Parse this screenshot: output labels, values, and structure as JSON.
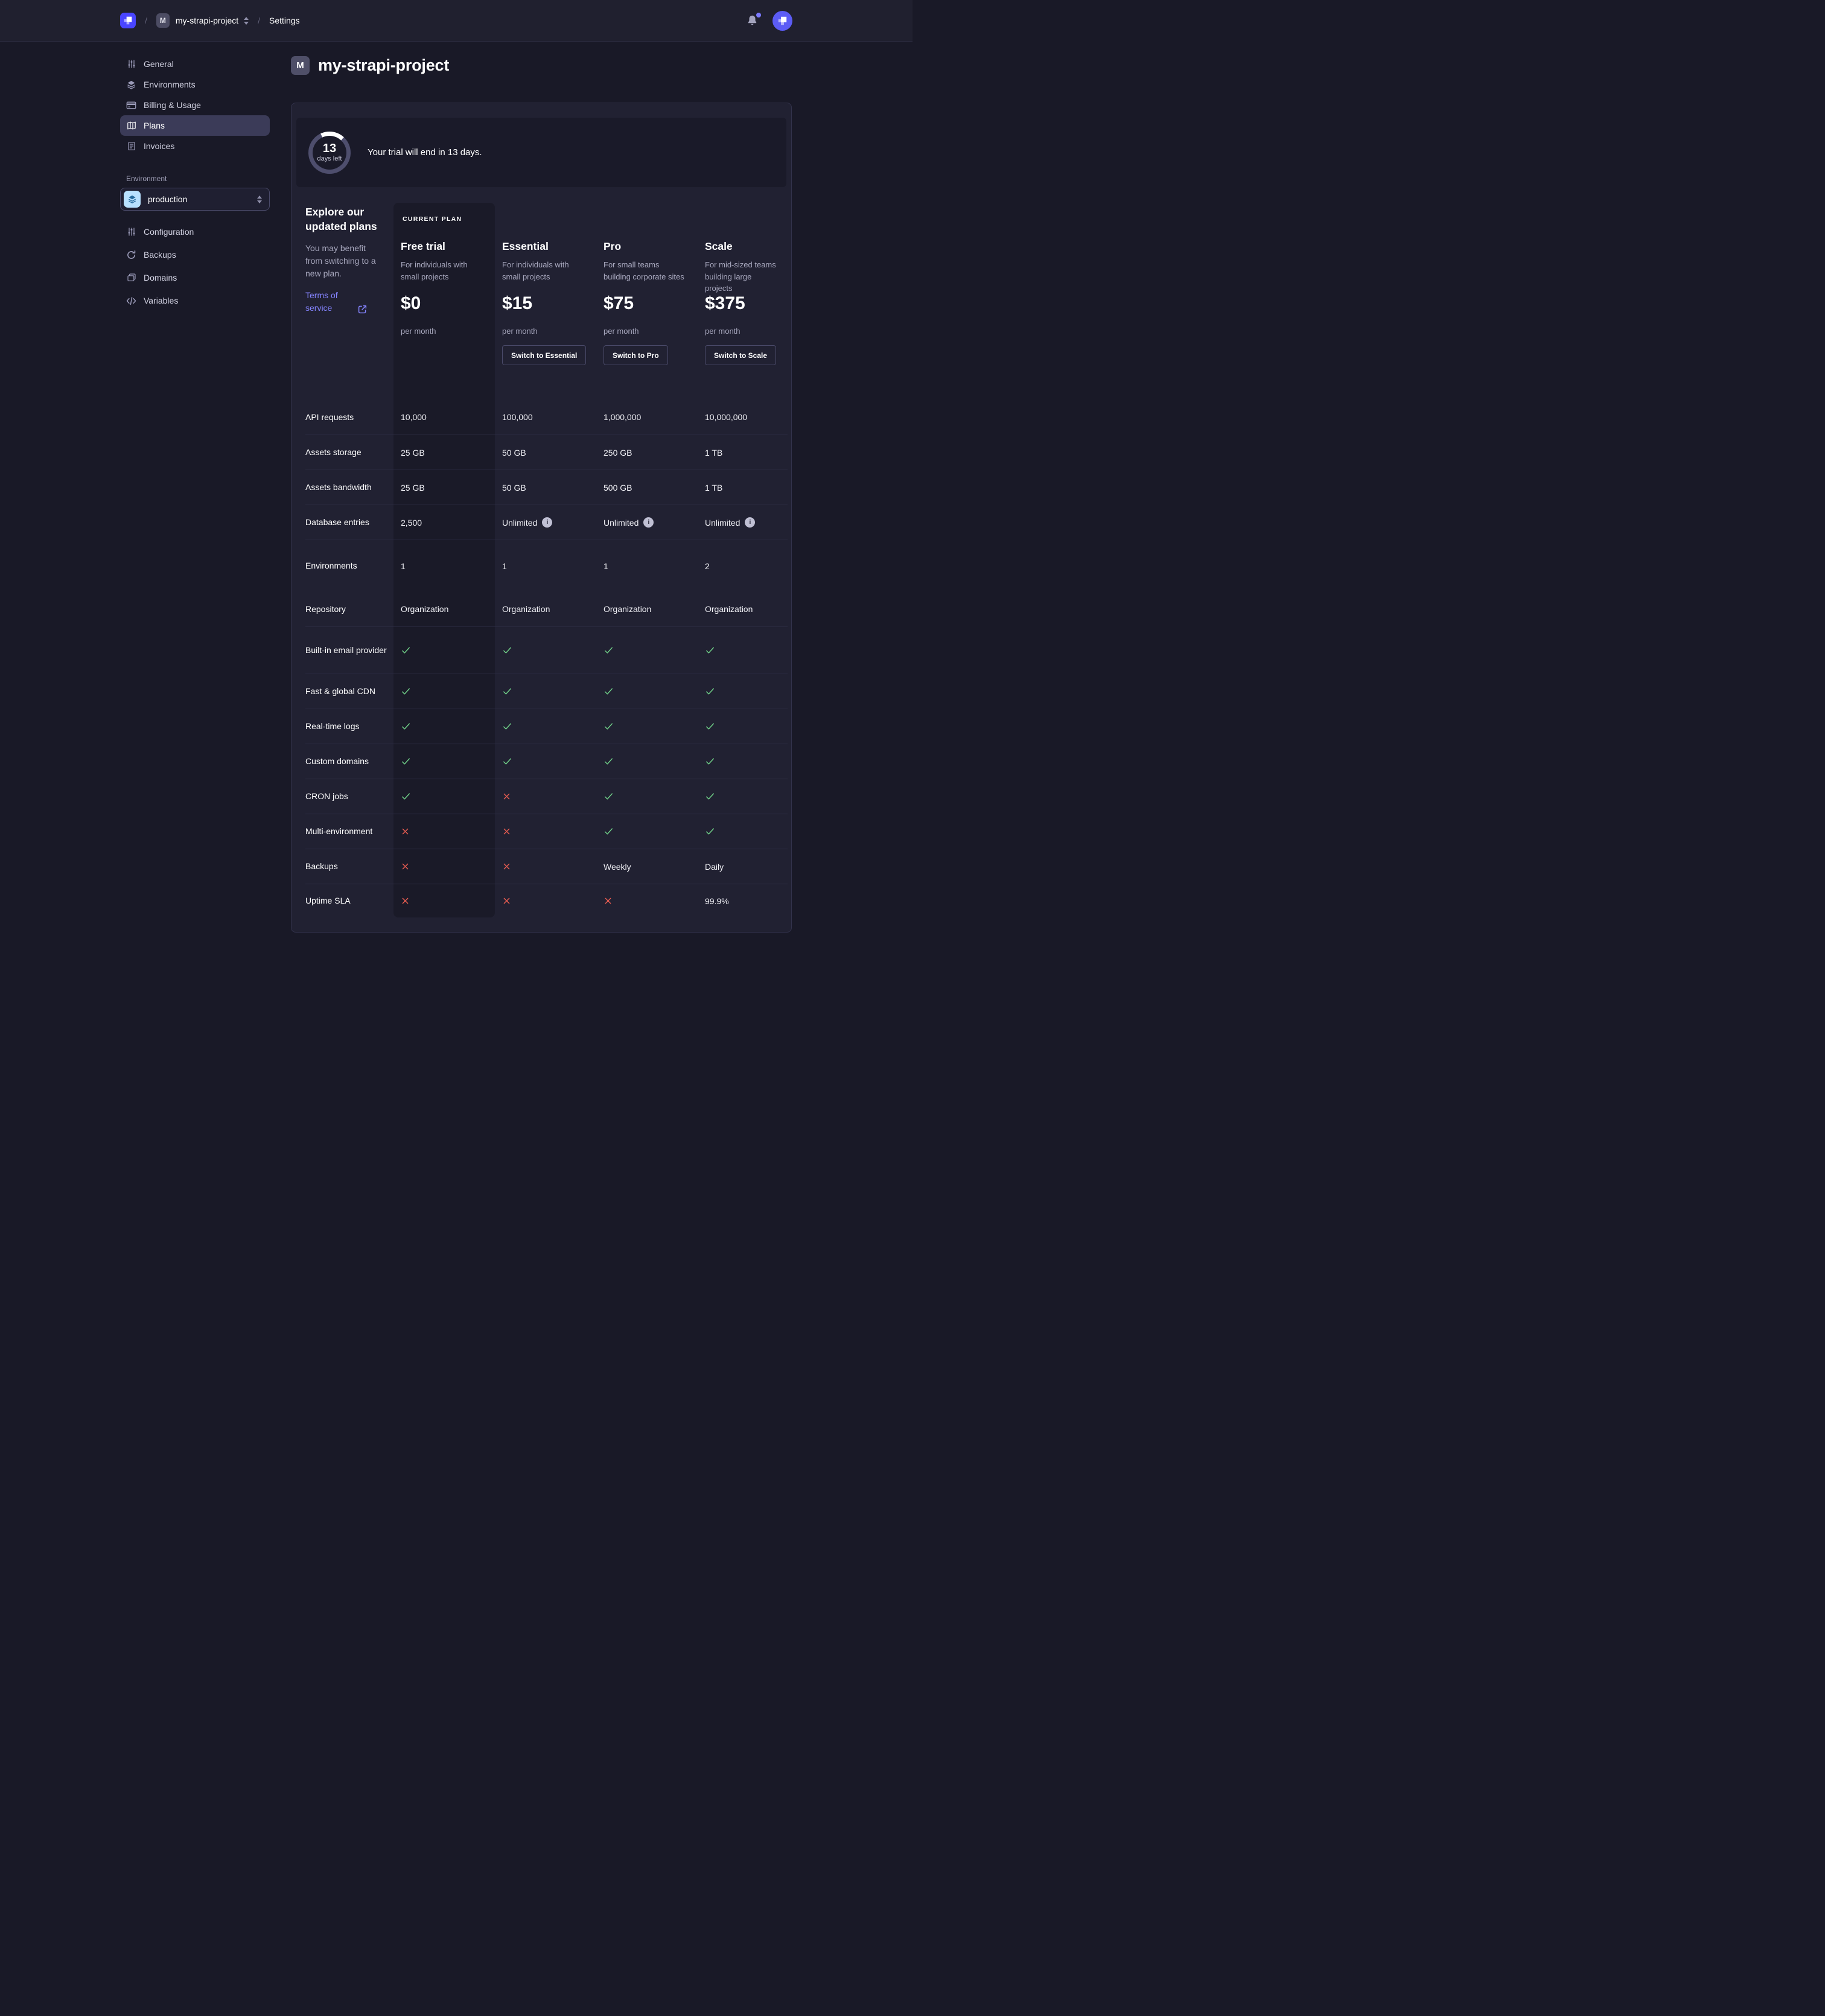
{
  "colors": {
    "accent": "#4945ff",
    "link": "#8584ff",
    "success_check": "#6fce87",
    "danger_cross": "#ee5e52",
    "env_icon_bg": "#b8e1ff",
    "card_bg": "#212132",
    "page_bg": "#191927"
  },
  "navbar": {
    "separator": "/",
    "project_badge": "M",
    "project": "my-strapi-project",
    "settings": "Settings"
  },
  "sidebar": {
    "items": [
      {
        "label": "General",
        "icon": "sliders-icon",
        "active": false
      },
      {
        "label": "Environments",
        "icon": "layers-icon",
        "active": false
      },
      {
        "label": "Billing & Usage",
        "icon": "credit-card-icon",
        "active": false
      },
      {
        "label": "Plans",
        "icon": "map-icon",
        "active": true
      },
      {
        "label": "Invoices",
        "icon": "invoice-icon",
        "active": false
      }
    ],
    "environment_label": "Environment",
    "environment": {
      "value": "production",
      "icon": "layers-icon"
    },
    "environment_items": [
      {
        "label": "Configuration",
        "icon": "sliders-icon"
      },
      {
        "label": "Backups",
        "icon": "refresh-icon"
      },
      {
        "label": "Domains",
        "icon": "folders-icon"
      },
      {
        "label": "Variables",
        "icon": "code-icon"
      }
    ]
  },
  "main": {
    "title_badge": "M",
    "title": "my-strapi-project",
    "trial_banner": {
      "days_number": "13",
      "days_caption": "days left",
      "message": "Your trial will end in 13 days."
    },
    "plans_intro": {
      "heading": "Explore our updated plans",
      "body": "You may benefit from switching to a new plan.",
      "link": "Terms of service"
    },
    "plans": [
      {
        "badge": "CURRENT PLAN",
        "name": "Free trial",
        "description": "For individuals with small projects",
        "price": "$0",
        "period": "per month",
        "cta": null,
        "current": true
      },
      {
        "badge": null,
        "name": "Essential",
        "description": "For individuals with small projects",
        "price": "$15",
        "period": "per month",
        "cta": "Switch to Essential",
        "current": false
      },
      {
        "badge": null,
        "name": "Pro",
        "description": "For small teams building corporate sites",
        "price": "$75",
        "period": "per month",
        "cta": "Switch to Pro",
        "current": false
      },
      {
        "badge": null,
        "name": "Scale",
        "description": "For mid-sized teams building large projects",
        "price": "$375",
        "period": "per month",
        "cta": "Switch to Scale",
        "current": false
      }
    ],
    "features": [
      {
        "label": "API requests",
        "row": "first",
        "values": [
          {
            "type": "text",
            "value": "10,000"
          },
          {
            "type": "text",
            "value": "100,000"
          },
          {
            "type": "text",
            "value": "1,000,000"
          },
          {
            "type": "text",
            "value": "10,000,000"
          }
        ]
      },
      {
        "label": "Assets storage",
        "row": "normal",
        "values": [
          {
            "type": "text",
            "value": "25 GB"
          },
          {
            "type": "text",
            "value": "50 GB"
          },
          {
            "type": "text",
            "value": "250 GB"
          },
          {
            "type": "text",
            "value": "1 TB"
          }
        ]
      },
      {
        "label": "Assets bandwidth",
        "row": "normal",
        "values": [
          {
            "type": "text",
            "value": "25 GB"
          },
          {
            "type": "text",
            "value": "50 GB"
          },
          {
            "type": "text",
            "value": "500 GB"
          },
          {
            "type": "text",
            "value": "1 TB"
          }
        ]
      },
      {
        "label": "Database entries",
        "row": "normal",
        "values": [
          {
            "type": "text",
            "value": "2,500"
          },
          {
            "type": "text",
            "value": "Unlimited",
            "info": true
          },
          {
            "type": "text",
            "value": "Unlimited",
            "info": true
          },
          {
            "type": "text",
            "value": "Unlimited",
            "info": true
          }
        ]
      },
      {
        "label": "Environments",
        "row": "tall",
        "values": [
          {
            "type": "text",
            "value": "1"
          },
          {
            "type": "text",
            "value": "1"
          },
          {
            "type": "text",
            "value": "1"
          },
          {
            "type": "text",
            "value": "2"
          }
        ]
      },
      {
        "label": "Repository",
        "row": "noline",
        "values": [
          {
            "type": "text",
            "value": "Organization"
          },
          {
            "type": "text",
            "value": "Organization"
          },
          {
            "type": "text",
            "value": "Organization"
          },
          {
            "type": "text",
            "value": "Organization"
          }
        ]
      },
      {
        "label": "Built-in email provider",
        "row": "big",
        "values": [
          {
            "type": "check"
          },
          {
            "type": "check"
          },
          {
            "type": "check"
          },
          {
            "type": "check"
          }
        ]
      },
      {
        "label": "Fast & global CDN",
        "row": "normal",
        "values": [
          {
            "type": "check"
          },
          {
            "type": "check"
          },
          {
            "type": "check"
          },
          {
            "type": "check"
          }
        ]
      },
      {
        "label": "Real-time logs",
        "row": "normal",
        "values": [
          {
            "type": "check"
          },
          {
            "type": "check"
          },
          {
            "type": "check"
          },
          {
            "type": "check"
          }
        ]
      },
      {
        "label": "Custom domains",
        "row": "normal",
        "values": [
          {
            "type": "check"
          },
          {
            "type": "check"
          },
          {
            "type": "check"
          },
          {
            "type": "check"
          }
        ]
      },
      {
        "label": "CRON jobs",
        "row": "normal",
        "values": [
          {
            "type": "check"
          },
          {
            "type": "cross"
          },
          {
            "type": "check"
          },
          {
            "type": "check"
          }
        ]
      },
      {
        "label": "Multi-environment",
        "row": "normal",
        "values": [
          {
            "type": "cross"
          },
          {
            "type": "cross"
          },
          {
            "type": "check"
          },
          {
            "type": "check"
          }
        ]
      },
      {
        "label": "Backups",
        "row": "normal",
        "values": [
          {
            "type": "cross"
          },
          {
            "type": "cross"
          },
          {
            "type": "text",
            "value": "Weekly"
          },
          {
            "type": "text",
            "value": "Daily"
          }
        ]
      },
      {
        "label": "Uptime SLA",
        "row": "short",
        "values": [
          {
            "type": "cross"
          },
          {
            "type": "cross"
          },
          {
            "type": "cross"
          },
          {
            "type": "text",
            "value": "99.9%"
          }
        ]
      }
    ]
  }
}
